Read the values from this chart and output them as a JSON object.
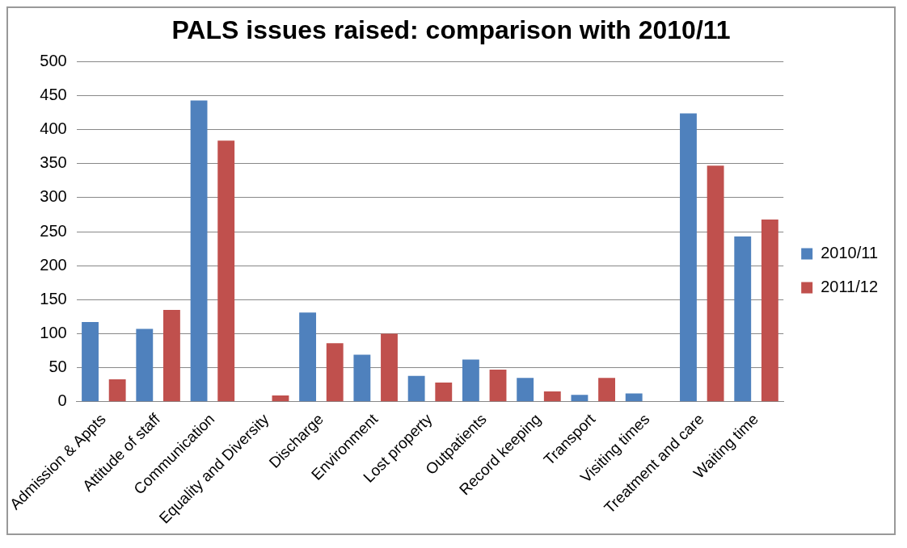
{
  "chart_data": {
    "type": "bar",
    "title": "PALS issues raised: comparison with 2010/11",
    "categories": [
      "Admission & Appts",
      "Attitude of staff",
      "Communication",
      "Equality and Diversity",
      "Discharge",
      "Environment",
      "Lost property",
      "Outpatients",
      "Record keeping",
      "Transport",
      "Visiting times",
      "Treatment and care",
      "Waiting time"
    ],
    "series": [
      {
        "name": "2010/11",
        "color": "#4f81bd",
        "values": [
          117,
          107,
          443,
          0,
          131,
          69,
          38,
          62,
          35,
          10,
          12,
          424,
          243
        ]
      },
      {
        "name": "2011/12",
        "color": "#c0504d",
        "values": [
          33,
          135,
          384,
          9,
          86,
          100,
          28,
          47,
          15,
          35,
          0,
          347,
          268
        ]
      }
    ],
    "ylim": [
      0,
      500
    ],
    "yticks": [
      0,
      50,
      100,
      150,
      200,
      250,
      300,
      350,
      400,
      450,
      500
    ],
    "grid": "y",
    "legend": "right"
  }
}
